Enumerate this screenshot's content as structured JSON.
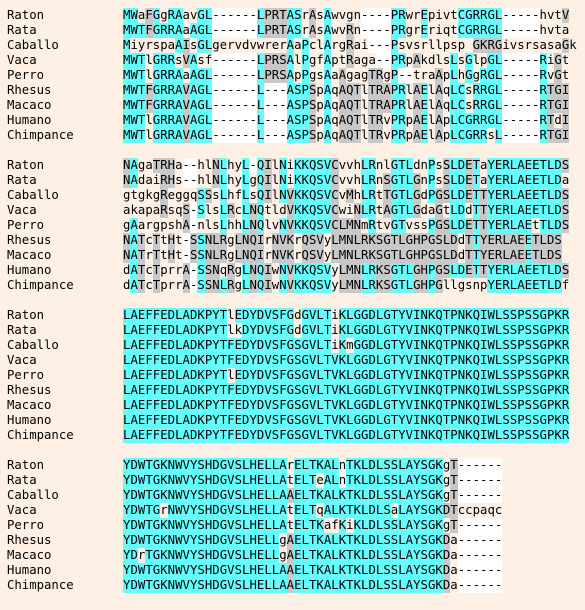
{
  "blocks": [
    {
      "rows": [
        {
          "name": "Raton",
          "seq": "MWaFGgRAavGL------LPRTASrAsAwvgn----PRwrEpivtCGRRGL-----hvtV"
        },
        {
          "name": "Rata",
          "seq": "MWTFGRRAaAGL------LPRTASrAsAwvRn----PRgrEriqtCGRRGL-----hvta"
        },
        {
          "name": "Caballo",
          "seq": "MiyrspaAIsGLgervdvwrerAaPclArgRai---Psvsrllpsp GKRGivsrsasaGk"
        },
        {
          "name": "Vaca",
          "seq": "MWTlGRRsVAsf------LPRSAlPgfAptRaga--PRpAkdlsLsGlpGL-----RiGt"
        },
        {
          "name": "Perro",
          "seq": "MWTlGRRAaAGL------LPRSApPgsAaAgagTRgP--traApLhGgRGL-----RvGt"
        },
        {
          "name": "Rhesus",
          "seq": "MWTFGRRAVAGL------L---ASPSpAqAQTlTRAPRlAElAqLCsRRGL-----RTGI"
        },
        {
          "name": "Macaco",
          "seq": "MWTFGRRAVAGL------L---ASPSpAqAQTlTRAPRlAElAqLCsRRGL-----RTGI"
        },
        {
          "name": "Humano",
          "seq": "MWTlGRRAVAGL------L---ASPSpAqAQTlTRvPRpAElApLCGRRGL-----RTdI"
        },
        {
          "name": "Chimpance",
          "seq": "MWTlGRRAVAGL------L---ASPSpAqAQTlTRvPRpAElApLCGRRsL-----RTGI"
        }
      ]
    },
    {
      "rows": [
        {
          "name": "Raton",
          "seq": "NAgaTRHa--hlNLhyL-QIlNiKKQSVCvvhLRnlGTLdnPsSLDETaYERLAEETLDS"
        },
        {
          "name": "Rata",
          "seq": "NAdaiRHs--hlNLhyLgQIlNiKKQSVCvvhLRnSGTLGnPsSLDETaYERLAEETLDa"
        },
        {
          "name": "Caballo",
          "seq": "gtgkgReggqSSsLhfLsQIlNVKKQSVCvMhLRtTGTLGdPGSLDETTYERLAEETLDS"
        },
        {
          "name": "Vaca",
          "seq": "akapaRsqS-SlsLRcLNQtldVKKQSVCwiNLRtAGTLGdaGtLDdTTYERLAEETLDS"
        },
        {
          "name": "Perro",
          "seq": "gAargpshA-nlsLhhLNQlvNVKKQSVCLMNmRtvGTvssPGSLDETTYERLAEtTLDS"
        },
        {
          "name": "Rhesus",
          "seq": "NATcTtHt-SSNLRgLNQIrNVKrQSVyLMNLRKSGTLGHPGSLDdTTYERLAEETLDS"
        },
        {
          "name": "Macaco",
          "seq": "NATrTtHt-SSNLRgLNQIrNVKrQSVyLMNLRKSGTLGHPGSLDdTTYERLAEETLDS"
        },
        {
          "name": "Humano",
          "seq": "dATcTprrA-SSNqRgLNQIwNVKKQSVyLMNLRKSGTLGHPGSLDETTYERLAEETLDS"
        },
        {
          "name": "Chimpance",
          "seq": "dATcTprrA-SSNLRgLNQIwNVKKQSVyLMNLRKSGTLGHPGllgsnpYERLAEETLDf"
        }
      ]
    },
    {
      "rows": [
        {
          "name": "Raton",
          "seq": "LAEFFEDLADKPYTlEDYDVSFGdGVLTiKLGGDLGTYVINKQTPNKQIWLSSPSSGPKR"
        },
        {
          "name": "Rata",
          "seq": "LAEFFEDLADKPYTlkDYDVSFGdGVLTiKLGGDLGTYVINKQTPNKQIWLSSPSSGPKR"
        },
        {
          "name": "Caballo",
          "seq": "LAEFFEDLADKPYTFEDYDVSFGSGVLTiKmGGDLGTYVINKQTPNKQIWLSSPSSGPKR"
        },
        {
          "name": "Vaca",
          "seq": "LAEFFEDLADKPYTFEDYDVSFGSGVLTVKLGGDLGTYVINKQTPNKQIWLSSPSSGPKR"
        },
        {
          "name": "Perro",
          "seq": "LAEFFEDLADKPYTlEDYDVSFGSGVLTVKLGGDLGTYVINKQTPNKQIWLSSPSSGPKR"
        },
        {
          "name": "Rhesus",
          "seq": "LAEFFEDLADKPYTFEDYDVSFGSGVLTVKLGGDLGTYVINKQTPNKQIWLSSPSSGPKR"
        },
        {
          "name": "Macaco",
          "seq": "LAEFFEDLADKPYTFEDYDVSFGSGVLTVKLGGDLGTYVINKQTPNKQIWLSSPSSGPKR"
        },
        {
          "name": "Humano",
          "seq": "LAEFFEDLADKPYTFEDYDVSFGSGVLTVKLGGDLGTYVINKQTPNKQIWLSSPSSGPKR"
        },
        {
          "name": "Chimpance",
          "seq": "LAEFFEDLADKPYTFEDYDVSFGSGVLTVKLGGDLGTYVINKQTPNKQIWLSSPSSGPKR"
        }
      ]
    },
    {
      "rows": [
        {
          "name": "Raton",
          "seq": "YDWTGKNWVYSHDGVSLHELLArELTKALnTKLDLSSLAYSGKgT------"
        },
        {
          "name": "Rata",
          "seq": "YDWTGKNWVYSHDGVSLHELLAtELTeALnTKLDLSSLAYSGKgT------"
        },
        {
          "name": "Caballo",
          "seq": "YDWTGKNWVYSHDGVSLHELLAAELTKALKTKLDLSSLAYSGKgT------"
        },
        {
          "name": "Vaca",
          "seq": "YDWTGrNWVYSHDGVSLHELLAtELTqALKTKLDLSaLAYSGKDTccpaqc"
        },
        {
          "name": "Perro",
          "seq": "YDWTGKNWVYSHDGVSLHELLAtELTKafKiKLDLSSLAYSGKgT------"
        },
        {
          "name": "Rhesus",
          "seq": "YDWTGKNWVYSHDGVSLHELLgAELTKALKTKLDLSSLAYSGKDa------"
        },
        {
          "name": "Macaco",
          "seq": "YDrTGKNWVYSHDGVSLHELLgAELTKALKTKLDLSSLAYSGKDa------"
        },
        {
          "name": "Humano",
          "seq": "YDWTGKNWVYSHDGVSLHELLAAELTKALKTKLDLSSLAYSGKDa------"
        },
        {
          "name": "Chimpance",
          "seq": "YDWTGKNWVYSHDGVSLHELLAAELTKALKTKLDLSSLAYSGKDa------"
        }
      ]
    }
  ],
  "colors": {
    "background": "#fff0e6",
    "conserved": "#66ffff",
    "similar": "#c8c8c8",
    "gap": "#ffffff"
  }
}
